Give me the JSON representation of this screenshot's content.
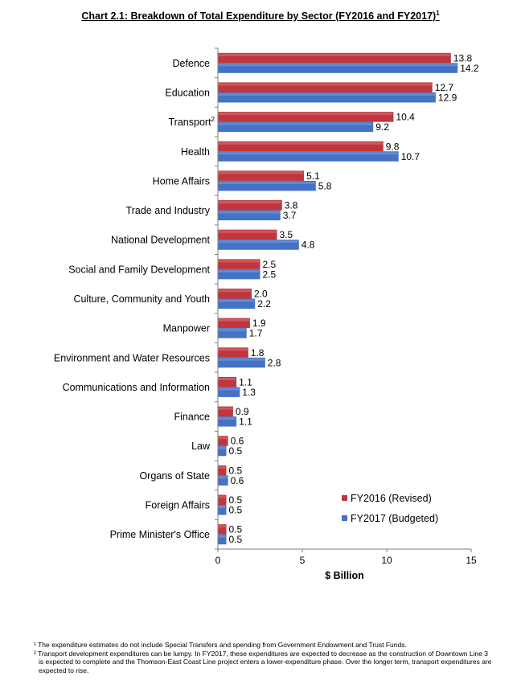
{
  "title_text": "Chart 2.1: Breakdown of Total Expenditure by Sector (FY2016 and FY2017)",
  "title_sup": "1",
  "chart_data": {
    "type": "bar",
    "orientation": "horizontal",
    "categories": [
      "Defence",
      "Education",
      "Transport",
      "Health",
      "Home Affairs",
      "Trade and Industry",
      "National Development",
      "Social and Family Development",
      "Culture, Community and Youth",
      "Manpower",
      "Environment and Water Resources",
      "Communications and Information",
      "Finance",
      "Law",
      "Organs of State",
      "Foreign Affairs",
      "Prime Minister's Office"
    ],
    "category_superscripts": {
      "Transport": "2"
    },
    "series": [
      {
        "name": "FY2016 (Revised)",
        "color": "#C0363C",
        "values": [
          13.8,
          12.7,
          10.4,
          9.8,
          5.1,
          3.8,
          3.5,
          2.5,
          2.0,
          1.9,
          1.8,
          1.1,
          0.9,
          0.6,
          0.5,
          0.5,
          0.5
        ],
        "labels": [
          "13.8",
          "12.7",
          "10.4",
          "9.8",
          "5.1",
          "3.8",
          "3.5",
          "2.5",
          "2.0",
          "1.9",
          "1.8",
          "1.1",
          "0.9",
          "0.6",
          "0.5",
          "0.5",
          "0.5"
        ]
      },
      {
        "name": "FY2017 (Budgeted)",
        "color": "#4472C4",
        "values": [
          14.2,
          12.9,
          9.2,
          10.7,
          5.8,
          3.7,
          4.8,
          2.5,
          2.2,
          1.7,
          2.8,
          1.3,
          1.1,
          0.5,
          0.6,
          0.5,
          0.5
        ],
        "labels": [
          "14.2",
          "12.9",
          "9.2",
          "10.7",
          "5.8",
          "3.7",
          "4.8",
          "2.5",
          "2.2",
          "1.7",
          "2.8",
          "1.3",
          "1.1",
          "0.5",
          "0.6",
          "0.5",
          "0.5"
        ]
      }
    ],
    "xlim": [
      0,
      15
    ],
    "xticks": [
      "0",
      "5",
      "10",
      "15"
    ],
    "xlabel": "$ Billion",
    "ylabel": "",
    "grid": false,
    "legend_position": "bottom-right"
  },
  "footnotes": {
    "fn1_mark": "¹",
    "fn1_text": "The expenditure estimates do not include Special Transfers and spending from Government Endowment and Trust Funds.",
    "fn2_mark": "²",
    "fn2_text": "Transport development expenditures can be lumpy. In FY2017, these expenditures are expected to decrease as the construction of Downtown Line 3 is expected to complete and the Thomson-East Coast Line project enters a lower-expenditure phase. Over the longer term, transport expenditures are expected to rise."
  }
}
